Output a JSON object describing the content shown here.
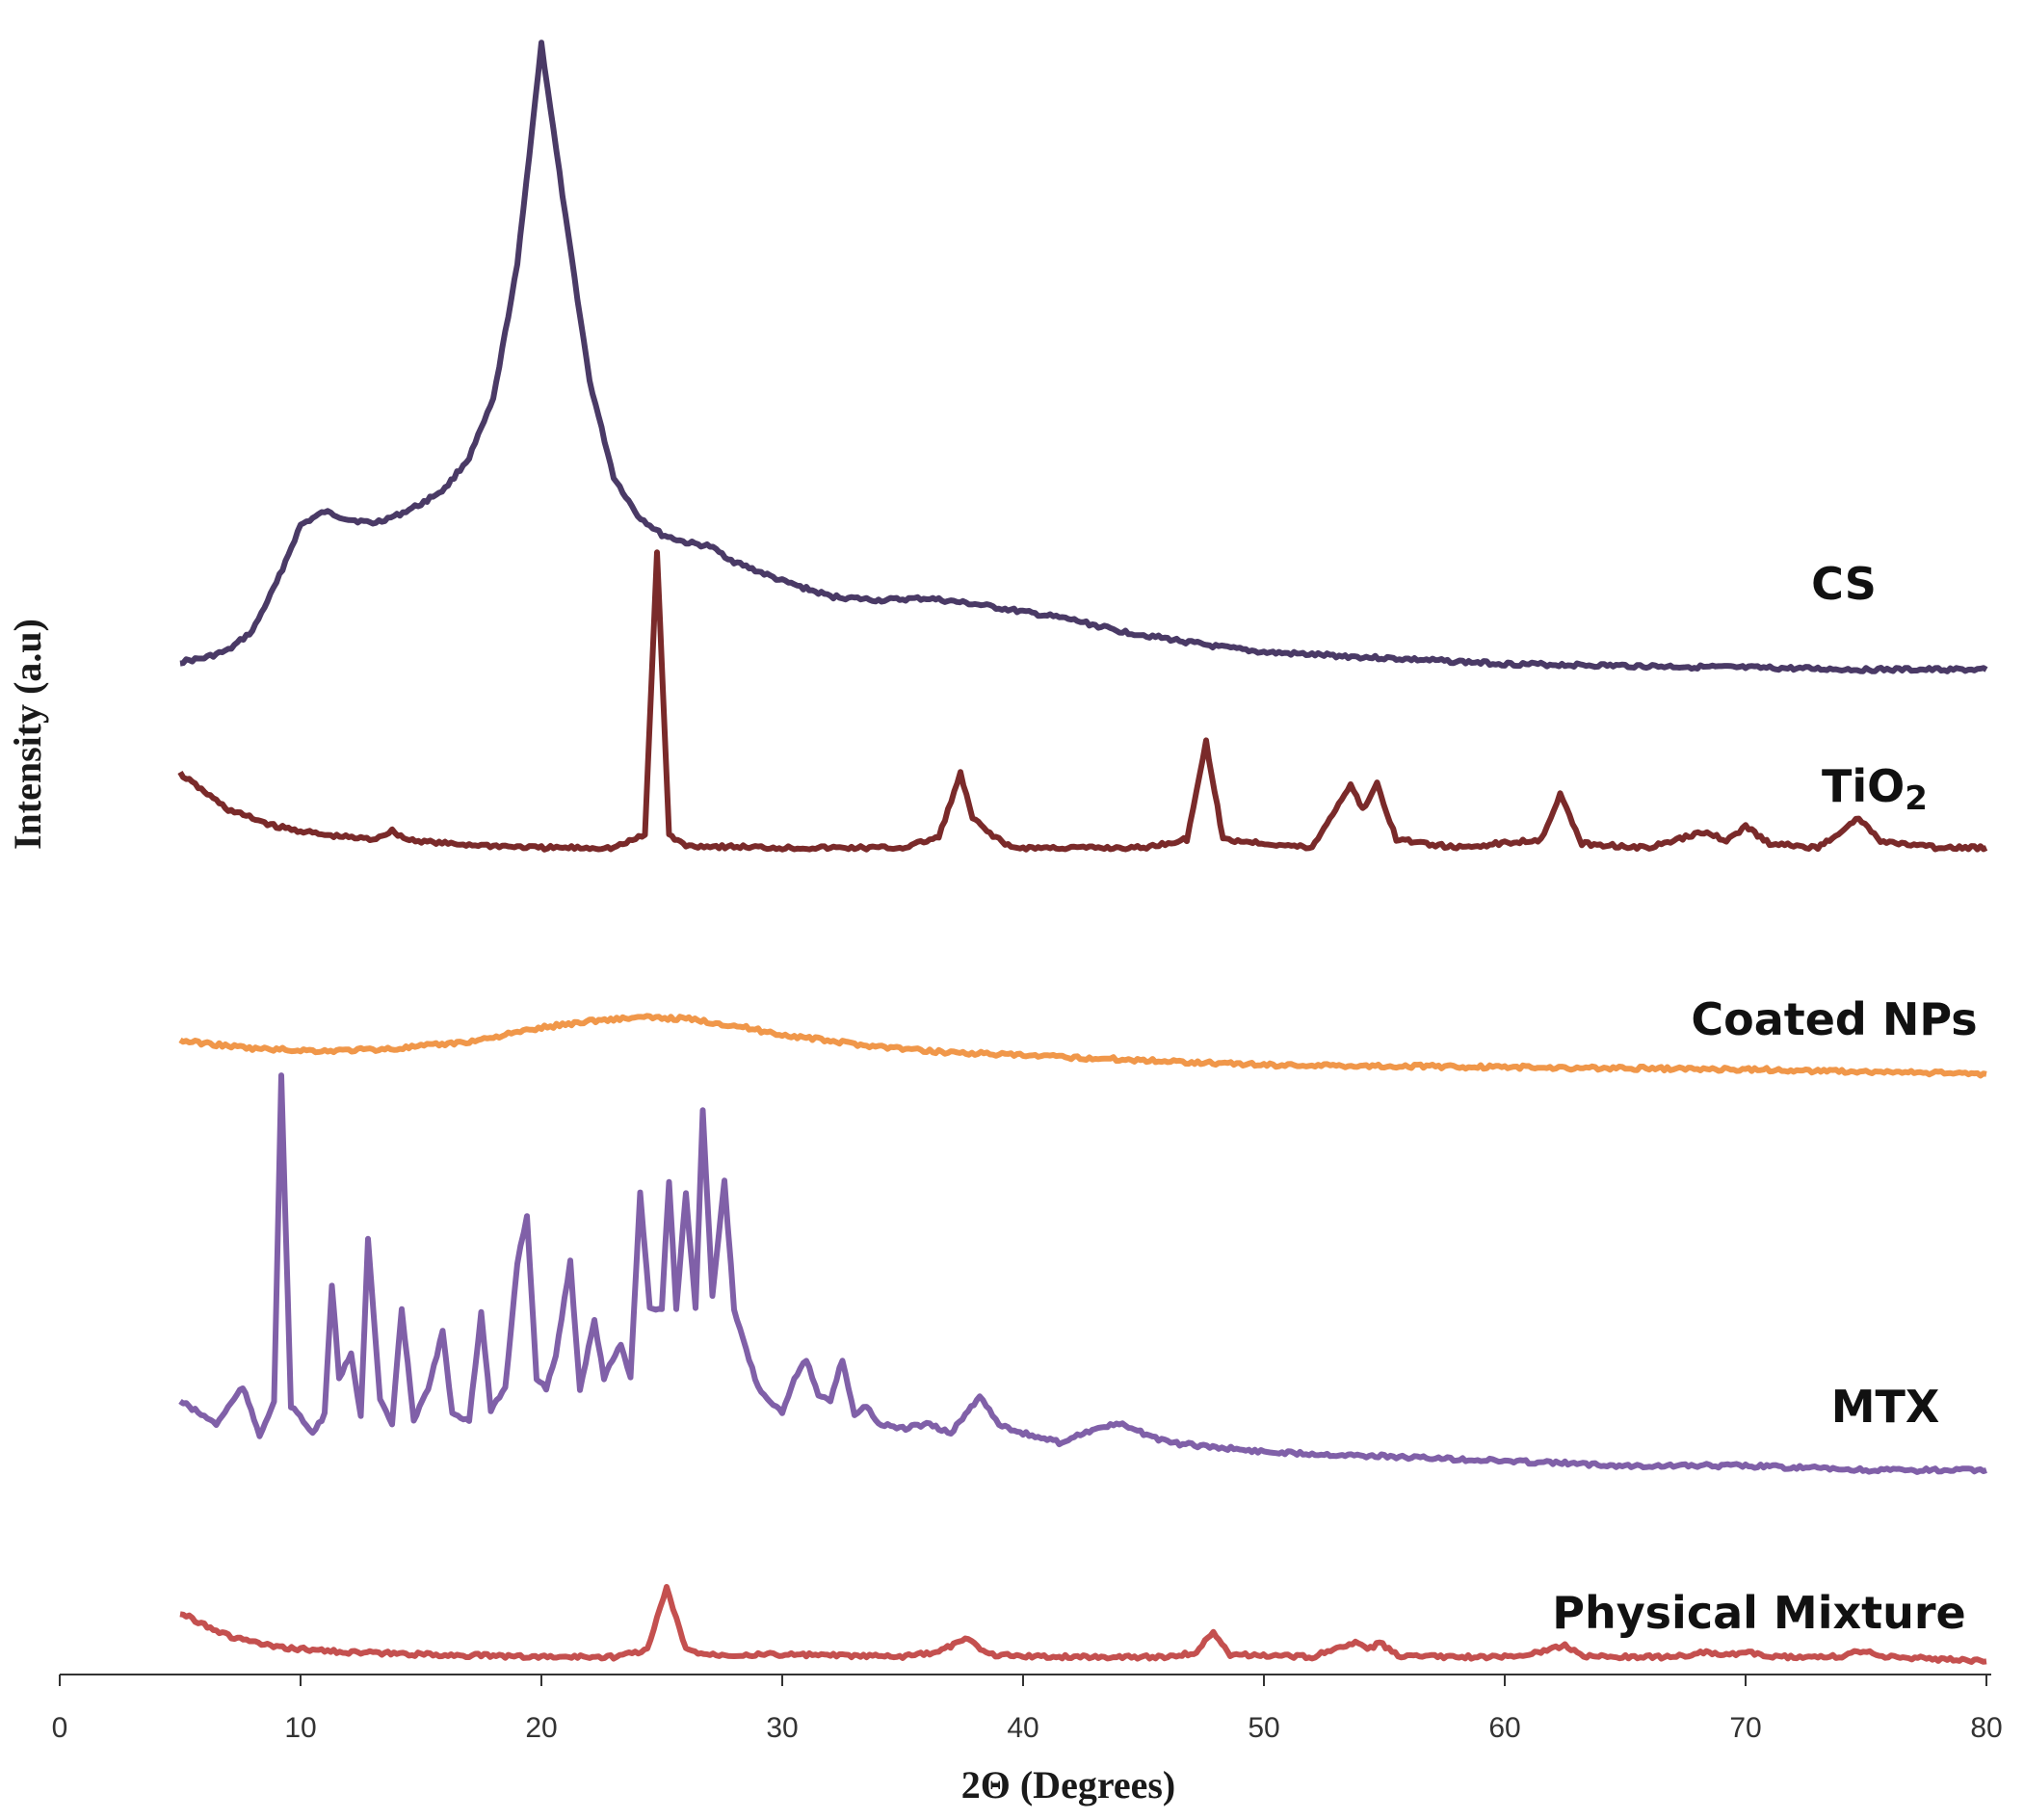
{
  "chart_data": {
    "type": "line",
    "title": "",
    "xlabel": "2Θ (Degrees)",
    "ylabel": "Intensity (a.u)",
    "xlim": [
      0,
      80
    ],
    "x_ticks": [
      "0",
      "10",
      "20",
      "30",
      "40",
      "50",
      "60",
      "70",
      "80"
    ],
    "y_ticks": [],
    "grid": false,
    "legend": "labels placed at right end of each trace",
    "series": [
      {
        "name": "CS",
        "name_main": "CS",
        "name_sub": "",
        "color": "#4a3a66",
        "points": [
          [
            5,
            4
          ],
          [
            6,
            6
          ],
          [
            7,
            10
          ],
          [
            8,
            20
          ],
          [
            9,
            45
          ],
          [
            10,
            75
          ],
          [
            11,
            82
          ],
          [
            12,
            78
          ],
          [
            13,
            76
          ],
          [
            14,
            80
          ],
          [
            15,
            86
          ],
          [
            16,
            94
          ],
          [
            17,
            110
          ],
          [
            18,
            140
          ],
          [
            19,
            210
          ],
          [
            20,
            325
          ],
          [
            21,
            235
          ],
          [
            22,
            150
          ],
          [
            23,
            100
          ],
          [
            24,
            80
          ],
          [
            25,
            70
          ],
          [
            26,
            66
          ],
          [
            27,
            64
          ],
          [
            28,
            56
          ],
          [
            30,
            46
          ],
          [
            32,
            38
          ],
          [
            34,
            36
          ],
          [
            36,
            37
          ],
          [
            38,
            34
          ],
          [
            40,
            30
          ],
          [
            42,
            26
          ],
          [
            44,
            20
          ],
          [
            46,
            16
          ],
          [
            48,
            12
          ],
          [
            50,
            9
          ],
          [
            55,
            6
          ],
          [
            60,
            3
          ],
          [
            65,
            2
          ],
          [
            70,
            1
          ],
          [
            75,
            0
          ],
          [
            80,
            0
          ]
        ]
      },
      {
        "name": "TiO2",
        "name_main": "TiO",
        "name_sub": "2",
        "color": "#7a2a2a",
        "points": [
          [
            5,
            35
          ],
          [
            7,
            18
          ],
          [
            9,
            10
          ],
          [
            11,
            6
          ],
          [
            13,
            4
          ],
          [
            13.8,
            8
          ],
          [
            14.4,
            4
          ],
          [
            16,
            2
          ],
          [
            20,
            0
          ],
          [
            23,
            0
          ],
          [
            24.3,
            6
          ],
          [
            24.8,
            140
          ],
          [
            25.3,
            6
          ],
          [
            26,
            1
          ],
          [
            30,
            0
          ],
          [
            35,
            0
          ],
          [
            36.5,
            5
          ],
          [
            37.4,
            35
          ],
          [
            37.9,
            14
          ],
          [
            38.5,
            8
          ],
          [
            39.5,
            0
          ],
          [
            45,
            0
          ],
          [
            46.8,
            4
          ],
          [
            47.6,
            50
          ],
          [
            48.3,
            4
          ],
          [
            52,
            0
          ],
          [
            53.6,
            30
          ],
          [
            54.1,
            18
          ],
          [
            54.7,
            30
          ],
          [
            55.5,
            4
          ],
          [
            58,
            0
          ],
          [
            61.5,
            4
          ],
          [
            62.3,
            25
          ],
          [
            63.2,
            2
          ],
          [
            66,
            0
          ],
          [
            68.4,
            8
          ],
          [
            69.2,
            3
          ],
          [
            70,
            10
          ],
          [
            71,
            2
          ],
          [
            73,
            0
          ],
          [
            74.7,
            14
          ],
          [
            75.6,
            3
          ],
          [
            78,
            0
          ],
          [
            80,
            0
          ]
        ]
      },
      {
        "name": "Coated NPs",
        "name_main": "Coated NPs",
        "name_sub": "",
        "color": "#f0974a",
        "points": [
          [
            5,
            25
          ],
          [
            8,
            18
          ],
          [
            11,
            16
          ],
          [
            14,
            18
          ],
          [
            17,
            24
          ],
          [
            20,
            36
          ],
          [
            22,
            42
          ],
          [
            24,
            45
          ],
          [
            26,
            44
          ],
          [
            28,
            38
          ],
          [
            30,
            30
          ],
          [
            33,
            22
          ],
          [
            36,
            16
          ],
          [
            40,
            12
          ],
          [
            45,
            8
          ],
          [
            50,
            4
          ],
          [
            60,
            2
          ],
          [
            70,
            0
          ],
          [
            80,
            -4
          ]
        ]
      },
      {
        "name": "MTX",
        "name_main": "MTX",
        "name_sub": "",
        "color": "#8060a8",
        "points": [
          [
            5,
            20
          ],
          [
            6.5,
            10
          ],
          [
            7.6,
            26
          ],
          [
            8.3,
            5
          ],
          [
            8.9,
            20
          ],
          [
            9.2,
            160
          ],
          [
            9.6,
            18
          ],
          [
            10.5,
            6
          ],
          [
            11,
            14
          ],
          [
            11.3,
            70
          ],
          [
            11.6,
            30
          ],
          [
            12.1,
            40
          ],
          [
            12.5,
            14
          ],
          [
            12.8,
            90
          ],
          [
            13.3,
            20
          ],
          [
            13.8,
            10
          ],
          [
            14.2,
            60
          ],
          [
            14.7,
            12
          ],
          [
            15.3,
            25
          ],
          [
            15.9,
            50
          ],
          [
            16.3,
            14
          ],
          [
            17,
            12
          ],
          [
            17.5,
            58
          ],
          [
            17.9,
            16
          ],
          [
            18.5,
            25
          ],
          [
            19,
            80
          ],
          [
            19.4,
            100
          ],
          [
            19.8,
            30
          ],
          [
            20.2,
            25
          ],
          [
            20.6,
            40
          ],
          [
            21.2,
            80
          ],
          [
            21.6,
            25
          ],
          [
            22.2,
            55
          ],
          [
            22.6,
            30
          ],
          [
            23.3,
            45
          ],
          [
            23.7,
            30
          ],
          [
            24.1,
            110
          ],
          [
            24.5,
            60
          ],
          [
            25,
            60
          ],
          [
            25.3,
            115
          ],
          [
            25.6,
            60
          ],
          [
            26,
            110
          ],
          [
            26.4,
            60
          ],
          [
            26.7,
            145
          ],
          [
            27.1,
            65
          ],
          [
            27.6,
            115
          ],
          [
            28,
            60
          ],
          [
            28.5,
            42
          ],
          [
            29,
            26
          ],
          [
            29.5,
            20
          ],
          [
            30,
            15
          ],
          [
            30.5,
            30
          ],
          [
            31,
            38
          ],
          [
            31.5,
            22
          ],
          [
            32,
            20
          ],
          [
            32.5,
            38
          ],
          [
            33,
            14
          ],
          [
            33.5,
            18
          ],
          [
            34,
            10
          ],
          [
            35,
            8
          ],
          [
            36,
            10
          ],
          [
            37,
            6
          ],
          [
            37.6,
            14
          ],
          [
            38.2,
            22
          ],
          [
            39,
            10
          ],
          [
            40,
            6
          ],
          [
            41.5,
            2
          ],
          [
            43,
            8
          ],
          [
            44,
            10
          ],
          [
            45,
            6
          ],
          [
            46,
            2
          ],
          [
            48,
            0
          ],
          [
            50,
            -2
          ],
          [
            55,
            -4
          ],
          [
            60,
            -6
          ],
          [
            65,
            -8
          ],
          [
            70,
            -8
          ],
          [
            75,
            -10
          ],
          [
            80,
            -10
          ]
        ]
      },
      {
        "name": "Physical Mixture",
        "name_main": "Physical Mixture",
        "name_sub": "",
        "color": "#c4504f",
        "points": [
          [
            5,
            40
          ],
          [
            6,
            30
          ],
          [
            7,
            20
          ],
          [
            9,
            10
          ],
          [
            12,
            6
          ],
          [
            15,
            4
          ],
          [
            20,
            2
          ],
          [
            23,
            2
          ],
          [
            24.4,
            8
          ],
          [
            25.2,
            62
          ],
          [
            26,
            8
          ],
          [
            27,
            4
          ],
          [
            30,
            4
          ],
          [
            35,
            2
          ],
          [
            36.5,
            6
          ],
          [
            37.6,
            18
          ],
          [
            38.6,
            4
          ],
          [
            41,
            2
          ],
          [
            46,
            2
          ],
          [
            47.2,
            6
          ],
          [
            47.9,
            24
          ],
          [
            48.6,
            4
          ],
          [
            52,
            2
          ],
          [
            53.8,
            14
          ],
          [
            54.3,
            8
          ],
          [
            54.8,
            14
          ],
          [
            55.7,
            2
          ],
          [
            60,
            2
          ],
          [
            61.5,
            6
          ],
          [
            62.5,
            12
          ],
          [
            63.4,
            2
          ],
          [
            67,
            2
          ],
          [
            68.5,
            6
          ],
          [
            69.2,
            3
          ],
          [
            70,
            6
          ],
          [
            71,
            2
          ],
          [
            74,
            2
          ],
          [
            74.9,
            8
          ],
          [
            75.8,
            2
          ],
          [
            78,
            0
          ],
          [
            80,
            -2
          ]
        ]
      }
    ]
  }
}
